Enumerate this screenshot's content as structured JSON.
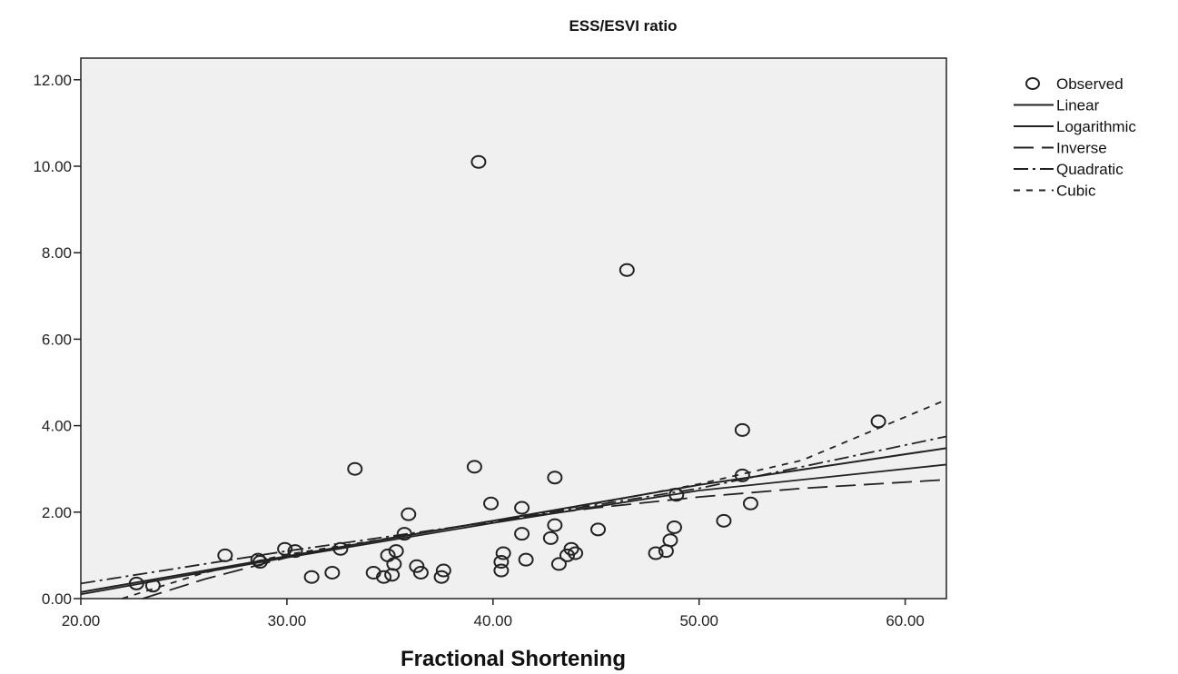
{
  "chart_data": {
    "type": "scatter",
    "title": "ESS/ESVI ratio",
    "xlabel": "Fractional Shortening",
    "ylabel": "",
    "xlim": [
      20,
      62
    ],
    "ylim": [
      0,
      12.5
    ],
    "x_ticks": [
      "20.00",
      "30.00",
      "40.00",
      "50.00",
      "60.00"
    ],
    "y_ticks": [
      "0.00",
      "2.00",
      "4.00",
      "6.00",
      "8.00",
      "10.00",
      "12.00"
    ],
    "legend_position": "right",
    "grid": false,
    "colors": {
      "plot_bg": "#f0f0f0",
      "marks": "#222222"
    },
    "legend": [
      "Observed",
      "Linear",
      "Logarithmic",
      "Inverse",
      "Quadratic",
      "Cubic"
    ],
    "observed": [
      [
        22.7,
        0.35
      ],
      [
        23.5,
        0.3
      ],
      [
        27.0,
        1.0
      ],
      [
        28.6,
        0.9
      ],
      [
        28.7,
        0.85
      ],
      [
        29.9,
        1.15
      ],
      [
        30.4,
        1.1
      ],
      [
        31.2,
        0.5
      ],
      [
        32.2,
        0.6
      ],
      [
        32.6,
        1.15
      ],
      [
        33.3,
        3.0
      ],
      [
        34.2,
        0.6
      ],
      [
        34.7,
        0.5
      ],
      [
        34.9,
        1.0
      ],
      [
        35.1,
        0.55
      ],
      [
        35.2,
        0.8
      ],
      [
        35.3,
        1.1
      ],
      [
        35.7,
        1.5
      ],
      [
        35.9,
        1.95
      ],
      [
        36.3,
        0.75
      ],
      [
        36.5,
        0.6
      ],
      [
        37.5,
        0.5
      ],
      [
        37.6,
        0.65
      ],
      [
        39.1,
        3.05
      ],
      [
        39.3,
        10.1
      ],
      [
        39.9,
        2.2
      ],
      [
        40.4,
        0.65
      ],
      [
        40.4,
        0.85
      ],
      [
        40.5,
        1.05
      ],
      [
        41.4,
        2.1
      ],
      [
        41.4,
        1.5
      ],
      [
        41.6,
        0.9
      ],
      [
        42.8,
        1.4
      ],
      [
        43.0,
        1.7
      ],
      [
        43.0,
        2.8
      ],
      [
        43.2,
        0.8
      ],
      [
        43.6,
        1.0
      ],
      [
        43.8,
        1.15
      ],
      [
        44.0,
        1.05
      ],
      [
        45.1,
        1.6
      ],
      [
        46.5,
        7.6
      ],
      [
        47.9,
        1.05
      ],
      [
        48.4,
        1.1
      ],
      [
        48.6,
        1.35
      ],
      [
        48.8,
        1.65
      ],
      [
        48.9,
        2.4
      ],
      [
        51.2,
        1.8
      ],
      [
        52.1,
        3.9
      ],
      [
        52.1,
        2.85
      ],
      [
        52.5,
        2.2
      ],
      [
        58.7,
        4.1
      ]
    ],
    "fits": [
      {
        "name": "Linear",
        "x": [
          20,
          30,
          40,
          50,
          62
        ],
        "y": [
          0.15,
          0.98,
          1.8,
          2.63,
          3.48
        ]
      },
      {
        "name": "Logarithmic",
        "x": [
          20,
          30,
          40,
          50,
          62
        ],
        "y": [
          0.1,
          0.95,
          1.75,
          2.5,
          3.1
        ]
      },
      {
        "name": "Inverse",
        "x": [
          23,
          26,
          30,
          35,
          40,
          45,
          50,
          55,
          62
        ],
        "y": [
          0.0,
          0.45,
          0.95,
          1.4,
          1.8,
          2.1,
          2.35,
          2.55,
          2.75
        ]
      },
      {
        "name": "Quadratic",
        "x": [
          20,
          30,
          40,
          50,
          62
        ],
        "y": [
          0.35,
          1.1,
          1.78,
          2.55,
          3.75
        ]
      },
      {
        "name": "Cubic",
        "x": [
          22,
          26,
          30,
          35,
          40,
          45,
          50,
          55,
          62
        ],
        "y": [
          0.0,
          0.6,
          1.02,
          1.4,
          1.8,
          2.2,
          2.65,
          3.2,
          4.6
        ]
      }
    ]
  }
}
